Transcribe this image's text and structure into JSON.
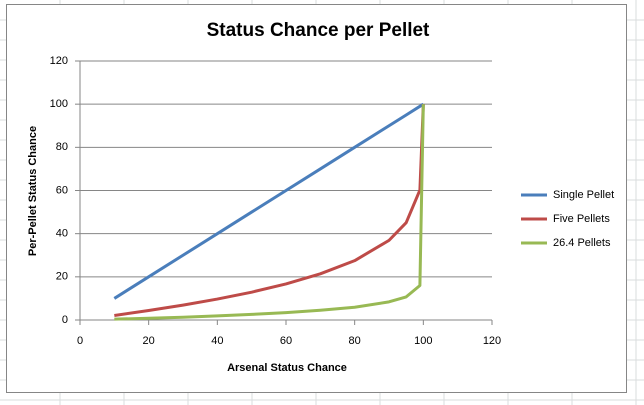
{
  "chart_data": {
    "type": "line",
    "title": "Status Chance per Pellet",
    "x_label": "Arsenal Status Chance",
    "y_label": "Per-Pellet Status Chance",
    "x": [
      10,
      20,
      30,
      40,
      50,
      60,
      70,
      80,
      90,
      95,
      99,
      100
    ],
    "series": [
      {
        "name": "Single Pellet",
        "color": "#4a7ebb",
        "values": [
          10,
          20,
          30,
          40,
          50,
          60,
          70,
          80,
          90,
          95,
          99,
          100
        ]
      },
      {
        "name": "Five Pellets",
        "color": "#be4b48",
        "values": [
          2.1,
          4.4,
          6.9,
          9.7,
          12.9,
          16.7,
          21.4,
          27.5,
          36.9,
          45.1,
          60.2,
          100
        ]
      },
      {
        "name": "26.4 Pellets",
        "color": "#98b954",
        "values": [
          0.4,
          0.8,
          1.3,
          1.9,
          2.6,
          3.4,
          4.5,
          5.9,
          8.4,
          10.7,
          16.0,
          100
        ]
      }
    ],
    "xlim": [
      0,
      120
    ],
    "xticks": [
      0,
      20,
      40,
      60,
      80,
      100,
      120
    ],
    "ylim": [
      0,
      120
    ],
    "yticks": [
      0,
      20,
      40,
      60,
      80,
      100,
      120
    ],
    "grid": true,
    "legend": "right"
  }
}
